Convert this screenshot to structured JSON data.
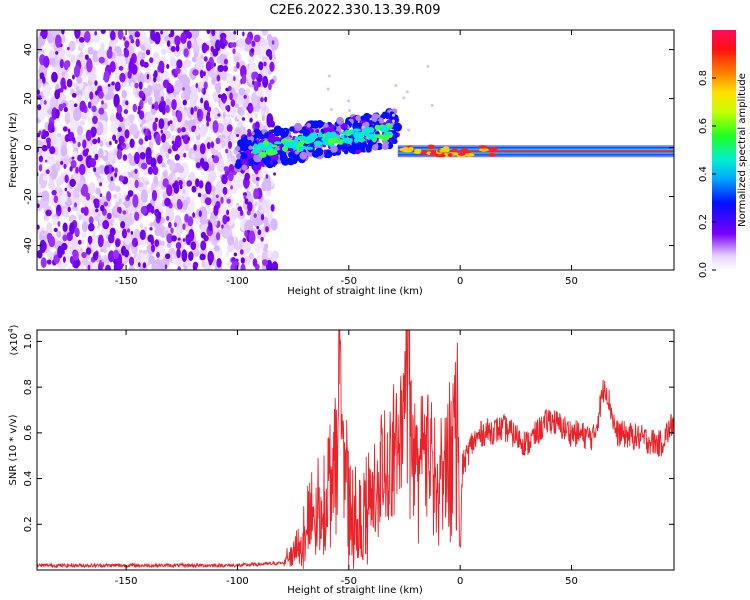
{
  "title": "C2E6.2022.330.13.39.R09",
  "chart_data": [
    {
      "type": "heatmap",
      "xlabel": "Height of straight line (km)",
      "ylabel": "Frequency (Hz)",
      "xlim": [
        -190,
        96
      ],
      "ylim": [
        -50,
        48
      ],
      "xticks": [
        -150,
        -100,
        -50,
        0,
        50
      ],
      "yticks": [
        -40,
        -20,
        0,
        20,
        40
      ],
      "colorbar": {
        "label": "Normalized spectral amplitude",
        "range": [
          0,
          1
        ],
        "ticks": [
          "0.0",
          "0.2",
          "0.4",
          "0.6",
          "0.8"
        ]
      },
      "regions": [
        {
          "name": "noise",
          "x_range": [
            -190,
            -83
          ],
          "freq_range": [
            -50,
            48
          ],
          "amplitude": 0.15
        },
        {
          "name": "onset",
          "x_range": [
            -100,
            -28
          ],
          "freq_center": [
            -2,
            8
          ],
          "amplitude": 0.4
        },
        {
          "name": "signal",
          "x_range": [
            -28,
            96
          ],
          "freq_center": -1.5,
          "amplitude": 0.95
        }
      ],
      "grid": false
    },
    {
      "type": "line",
      "xlabel": "Height of straight line (km)",
      "ylabel": "SNR (10 * v/v)",
      "y_multiplier": "(x10^4)",
      "xlim": [
        -190,
        96
      ],
      "ylim": [
        0,
        1.05
      ],
      "xticks": [
        -150,
        -100,
        -50,
        0,
        50
      ],
      "yticks": [
        "0.2",
        "0.4",
        "0.6",
        "0.8",
        "1.0"
      ],
      "series": [
        {
          "color": "#e8242a",
          "x": [
            -190,
            -150,
            -100,
            -80,
            -76,
            -70,
            -60,
            -56,
            -54,
            -50,
            -45,
            -40,
            -36,
            -30,
            -26,
            -24,
            -20,
            -15,
            -10,
            -5,
            -1,
            0,
            1,
            5,
            10,
            20,
            30,
            40,
            50,
            60,
            65,
            70,
            80,
            90,
            96
          ],
          "y": [
            0.02,
            0.02,
            0.02,
            0.03,
            0.08,
            0.15,
            0.35,
            0.5,
            1.01,
            0.25,
            0.15,
            0.3,
            0.45,
            0.55,
            0.65,
            1.06,
            0.45,
            0.6,
            0.35,
            0.55,
            0.85,
            0.05,
            0.45,
            0.55,
            0.6,
            0.62,
            0.55,
            0.66,
            0.6,
            0.58,
            0.82,
            0.6,
            0.58,
            0.55,
            0.65
          ]
        }
      ],
      "grid": false
    }
  ]
}
